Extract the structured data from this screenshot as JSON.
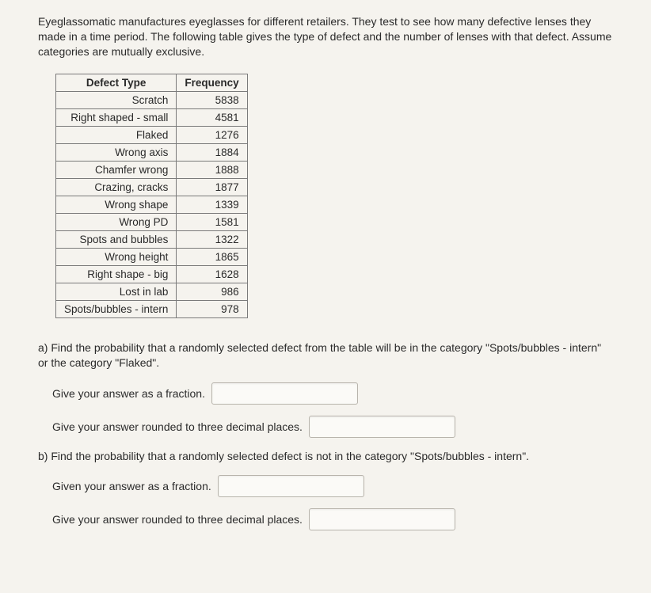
{
  "intro": "Eyeglassomatic manufactures eyeglasses for different retailers. They test to see how many defective lenses they made in a time period. The following table gives the type of defect and the number of lenses with that defect. Assume categories are mutually exclusive.",
  "table": {
    "headers": {
      "col1": "Defect Type",
      "col2": "Frequency"
    },
    "rows": [
      {
        "label": "Scratch",
        "value": "5838"
      },
      {
        "label": "Right shaped - small",
        "value": "4581"
      },
      {
        "label": "Flaked",
        "value": "1276"
      },
      {
        "label": "Wrong axis",
        "value": "1884"
      },
      {
        "label": "Chamfer wrong",
        "value": "1888"
      },
      {
        "label": "Crazing, cracks",
        "value": "1877"
      },
      {
        "label": "Wrong shape",
        "value": "1339"
      },
      {
        "label": "Wrong PD",
        "value": "1581"
      },
      {
        "label": "Spots and bubbles",
        "value": "1322"
      },
      {
        "label": "Wrong height",
        "value": "1865"
      },
      {
        "label": "Right shape - big",
        "value": "1628"
      },
      {
        "label": "Lost in lab",
        "value": "986"
      },
      {
        "label": "Spots/bubbles - intern",
        "value": "978"
      }
    ]
  },
  "qa": {
    "a_text": "a) Find the probability that a randomly selected defect from the table will be in the category \"Spots/bubbles - intern\" or the category \"Flaked\".",
    "b_text": "b) Find the probability that a randomly selected defect is not in the category \"Spots/bubbles - intern\".",
    "give_fraction": "Give your answer as a fraction.",
    "given_fraction": "Given your answer as a fraction.",
    "give_decimal": "Give your answer rounded to three decimal places."
  }
}
